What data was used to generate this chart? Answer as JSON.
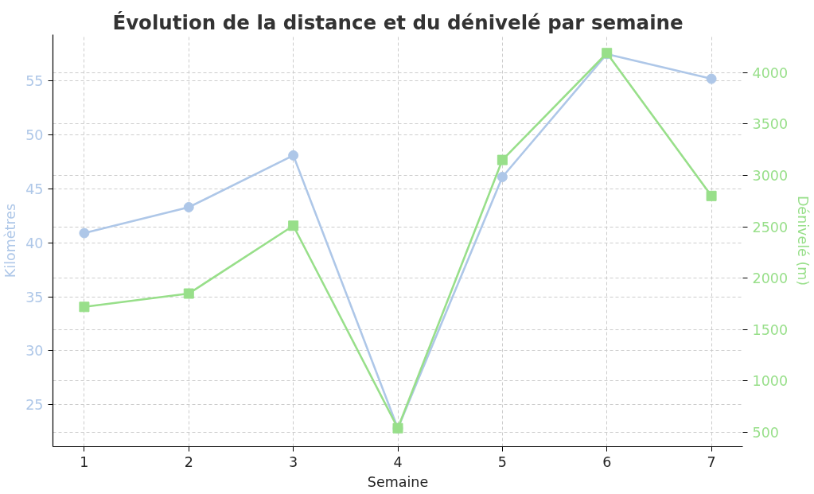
{
  "chart_data": {
    "type": "line",
    "title": "Évolution de la distance et du dénivelé par semaine",
    "xlabel": "Semaine",
    "ylabel": "Kilomètres",
    "y2label": "Dénivelé (m)",
    "x": [
      1,
      2,
      3,
      4,
      5,
      6,
      7
    ],
    "xlim": [
      0.7,
      7.3
    ],
    "xticks": [
      1,
      2,
      3,
      4,
      5,
      6,
      7
    ],
    "ylim": [
      21.1,
      59.3
    ],
    "yticks": [
      25,
      30,
      35,
      40,
      45,
      50,
      55
    ],
    "y2lim": [
      360,
      4370
    ],
    "y2ticks": [
      500,
      1000,
      1500,
      2000,
      2500,
      3000,
      3500,
      4000
    ],
    "grid": true,
    "series": [
      {
        "color": "#aec7e8",
        "marker": "circle",
        "values": [
          40.9,
          43.3,
          48.1,
          22.8,
          46.1,
          57.5,
          55.2
        ]
      },
      {
        "color": "#98df8a",
        "marker": "square",
        "axis": "y2",
        "values": [
          1720,
          1850,
          2510,
          540,
          3150,
          4190,
          2800
        ]
      }
    ]
  }
}
